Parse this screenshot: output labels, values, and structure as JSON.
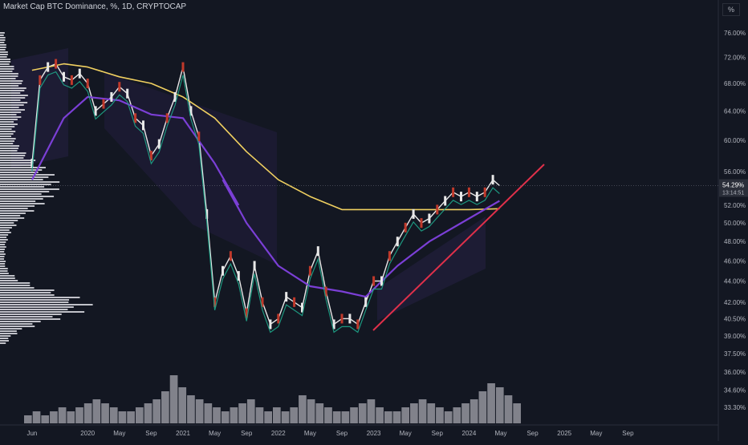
{
  "title": "Market Cap BTC Dominance, %, 1D, CRYPTOCAP",
  "unit_button": "%",
  "colors": {
    "background": "#131722",
    "up_candle": "#e8e8e8",
    "down_candle": "#c0392b",
    "ma_yellow": "#f0d060",
    "ma_purple": "#7b3fd6",
    "ma_teal": "#1fa58a",
    "trendline": "#e0304a",
    "volume": "#b0b0b8",
    "price_tag": "#2a2e39"
  },
  "price_tag": {
    "value": "54.29%",
    "countdown": "13:14:51"
  },
  "chart_data": {
    "type": "line",
    "title": "Market Cap BTC Dominance, %, 1D, CRYPTOCAP",
    "x_tick_labels": [
      "Jun",
      "2020",
      "May",
      "Sep",
      "2021",
      "May",
      "Sep",
      "2022",
      "May",
      "Sep",
      "2023",
      "May",
      "Sep",
      "2024",
      "May",
      "Sep",
      "2025",
      "May",
      "Sep"
    ],
    "y_tick_labels": [
      "76.00%",
      "72.00%",
      "68.00%",
      "64.00%",
      "60.00%",
      "56.00%",
      "52.00%",
      "50.00%",
      "48.00%",
      "46.00%",
      "44.00%",
      "42.00%",
      "40.50%",
      "39.00%",
      "37.50%",
      "36.00%",
      "34.60%",
      "33.30%"
    ],
    "log_scale": true,
    "ylim": [
      32.5,
      77.5
    ],
    "grid": false,
    "series": [
      {
        "points": [
          [
            "2019-06",
            57.0
          ],
          [
            "2019-07",
            68.5
          ],
          [
            "2019-08",
            70.5
          ],
          [
            "2019-09",
            71.0
          ],
          [
            "2019-10",
            69.0
          ],
          [
            "2019-11",
            68.5
          ],
          [
            "2019-12",
            69.5
          ],
          [
            "2020-01",
            68.0
          ],
          [
            "2020-02",
            64.0
          ],
          [
            "2020-03",
            65.0
          ],
          [
            "2020-04",
            66.0
          ],
          [
            "2020-05",
            67.5
          ],
          [
            "2020-06",
            66.5
          ],
          [
            "2020-07",
            63.0
          ],
          [
            "2020-08",
            62.0
          ],
          [
            "2020-09",
            58.0
          ],
          [
            "2020-10",
            59.5
          ],
          [
            "2020-11",
            63.0
          ],
          [
            "2020-12",
            66.0
          ],
          [
            "2021-01",
            70.5
          ],
          [
            "2021-02",
            64.0
          ],
          [
            "2021-03",
            60.5
          ],
          [
            "2021-04",
            51.0
          ],
          [
            "2021-05",
            42.0
          ],
          [
            "2021-06",
            45.0
          ],
          [
            "2021-07",
            46.5
          ],
          [
            "2021-08",
            44.5
          ],
          [
            "2021-09",
            41.0
          ],
          [
            "2021-10",
            45.5
          ],
          [
            "2021-11",
            42.0
          ],
          [
            "2021-12",
            40.0
          ],
          [
            "2022-01",
            40.5
          ],
          [
            "2022-02",
            42.5
          ],
          [
            "2022-03",
            42.0
          ],
          [
            "2022-04",
            41.5
          ],
          [
            "2022-05",
            45.0
          ],
          [
            "2022-06",
            47.0
          ],
          [
            "2022-07",
            43.0
          ],
          [
            "2022-08",
            40.0
          ],
          [
            "2022-09",
            40.5
          ],
          [
            "2022-10",
            40.5
          ],
          [
            "2022-11",
            40.0
          ],
          [
            "2022-12",
            42.0
          ],
          [
            "2023-01",
            44.0
          ],
          [
            "2023-02",
            44.0
          ],
          [
            "2023-03",
            46.5
          ],
          [
            "2023-04",
            48.0
          ],
          [
            "2023-05",
            49.5
          ],
          [
            "2023-06",
            51.0
          ],
          [
            "2023-07",
            50.0
          ],
          [
            "2023-08",
            50.5
          ],
          [
            "2023-09",
            51.5
          ],
          [
            "2023-10",
            52.5
          ],
          [
            "2023-11",
            53.5
          ],
          [
            "2023-12",
            53.0
          ],
          [
            "2024-01",
            53.5
          ],
          [
            "2024-02",
            53.0
          ],
          [
            "2024-03",
            53.5
          ],
          [
            "2024-04",
            55.0
          ],
          [
            "2024-04-26",
            54.29
          ]
        ]
      },
      {
        "points": [
          [
            "2019-06",
            70.0
          ],
          [
            "2019-10",
            71.0
          ],
          [
            "2020-01",
            70.5
          ],
          [
            "2020-05",
            69.0
          ],
          [
            "2020-09",
            68.0
          ],
          [
            "2021-01",
            66.0
          ],
          [
            "2021-05",
            63.0
          ],
          [
            "2021-09",
            58.5
          ],
          [
            "2022-01",
            55.0
          ],
          [
            "2022-05",
            53.0
          ],
          [
            "2022-09",
            51.5
          ],
          [
            "2023-01",
            51.5
          ],
          [
            "2023-05",
            51.5
          ],
          [
            "2023-09",
            51.5
          ],
          [
            "2024-01",
            51.5
          ],
          [
            "2024-04-26",
            51.6
          ]
        ]
      },
      {
        "points": [
          [
            "2019-06",
            55.0
          ],
          [
            "2019-10",
            63.0
          ],
          [
            "2020-01",
            66.0
          ],
          [
            "2020-05",
            65.5
          ],
          [
            "2020-09",
            63.5
          ],
          [
            "2021-01",
            63.0
          ],
          [
            "2021-05",
            57.0
          ],
          [
            "2021-08",
            52.0
          ]
        ]
      },
      {
        "points": [
          [
            "2021-06",
            55.0
          ],
          [
            "2021-09",
            50.0
          ],
          [
            "2022-01",
            45.5
          ],
          [
            "2022-05",
            43.5
          ],
          [
            "2022-09",
            43.0
          ],
          [
            "2022-12",
            42.5
          ],
          [
            "2023-04",
            45.5
          ],
          [
            "2023-08",
            48.0
          ],
          [
            "2024-01",
            50.5
          ],
          [
            "2024-04-26",
            52.5
          ]
        ]
      }
    ],
    "volume": [
      2,
      3,
      2,
      3,
      4,
      3,
      4,
      5,
      6,
      5,
      4,
      3,
      3,
      4,
      5,
      6,
      8,
      12,
      9,
      7,
      6,
      5,
      4,
      3,
      4,
      5,
      6,
      4,
      3,
      4,
      3,
      4,
      7,
      6,
      5,
      4,
      3,
      3,
      4,
      5,
      6,
      4,
      3,
      3,
      4,
      5,
      6,
      5,
      4,
      3,
      4,
      5,
      6,
      8,
      10,
      9,
      7,
      5
    ]
  }
}
